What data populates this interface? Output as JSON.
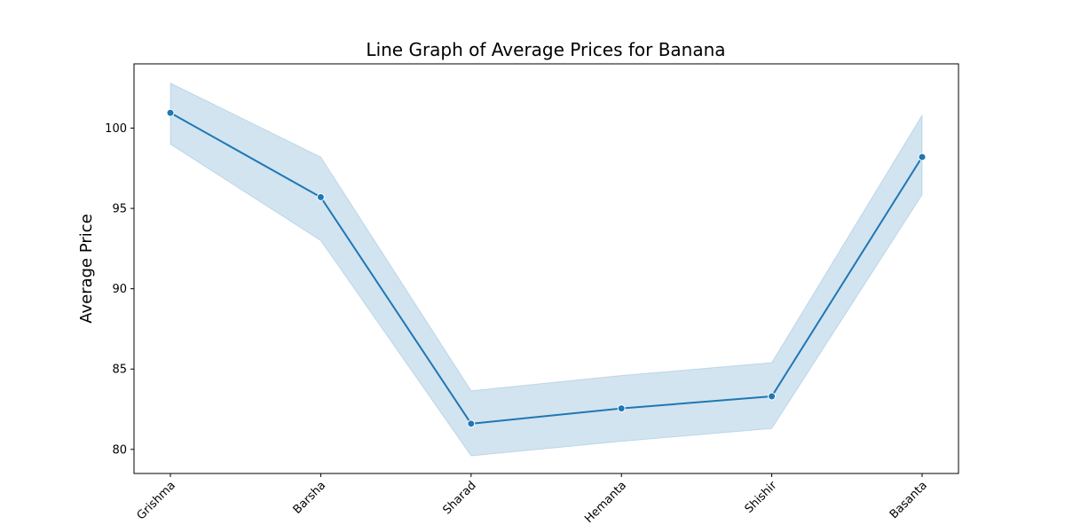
{
  "chart_data": {
    "type": "line",
    "title": "Line Graph of Average Prices for Banana",
    "xlabel": "",
    "ylabel": "Average Price",
    "categories": [
      "Grishma",
      "Barsha",
      "Sharad",
      "Hemanta",
      "Shishir",
      "Basanta"
    ],
    "series": [
      {
        "values": [
          100.95,
          95.7,
          81.6,
          82.55,
          83.3,
          98.2
        ],
        "ci_lower": [
          99.0,
          93.0,
          79.6,
          80.5,
          81.3,
          95.85
        ],
        "ci_upper": [
          102.8,
          98.2,
          83.65,
          84.6,
          85.4,
          100.8
        ],
        "color": "#1f77b4",
        "band_color": "#1f77b4"
      }
    ],
    "ylim": [
      78.5,
      104
    ],
    "yticks": [
      80,
      85,
      90,
      95,
      100
    ],
    "grid": false,
    "legend": "none"
  }
}
